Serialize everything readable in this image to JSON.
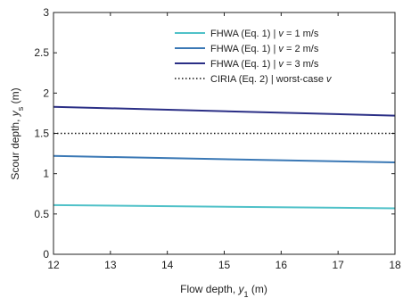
{
  "chart_data": {
    "type": "line",
    "xlabel": {
      "main": "Flow depth, ",
      "var": "y",
      "sub": "1",
      "unit": " (m)"
    },
    "ylabel": {
      "main": "Scour depth, ",
      "var": "y",
      "sub": "s",
      "unit": " (m)"
    },
    "xlim": [
      12,
      18
    ],
    "ylim": [
      0,
      3
    ],
    "xticks": [
      12,
      13,
      14,
      15,
      16,
      17,
      18
    ],
    "yticks": [
      0,
      0.5,
      1,
      1.5,
      2,
      2.5,
      3
    ],
    "ytick_labels": [
      "0",
      "0.5",
      "1",
      "1.5",
      "2",
      "2.5",
      "3"
    ],
    "legend_position": "top-right",
    "series": [
      {
        "name": "FHWA (Eq. 1) | v = 1 m/s",
        "label_main": "FHWA (Eq. 1) | ",
        "label_var": "v",
        "label_tail": " = 1 m/s",
        "color": "#4fc1c8",
        "style": "solid",
        "x": [
          12,
          18
        ],
        "y": [
          0.61,
          0.57
        ]
      },
      {
        "name": "FHWA (Eq. 1) | v = 2 m/s",
        "label_main": "FHWA (Eq. 1) | ",
        "label_var": "v",
        "label_tail": " = 2 m/s",
        "color": "#3a78b5",
        "style": "solid",
        "x": [
          12,
          18
        ],
        "y": [
          1.22,
          1.14
        ]
      },
      {
        "name": "FHWA (Eq. 1) | v = 3 m/s",
        "label_main": "FHWA (Eq. 1) | ",
        "label_var": "v",
        "label_tail": " = 3 m/s",
        "color": "#2b2f86",
        "style": "solid",
        "x": [
          12,
          18
        ],
        "y": [
          1.83,
          1.72
        ]
      },
      {
        "name": "CIRIA (Eq. 2) | worst-case v",
        "label_main": "CIRIA (Eq. 2) | worst-case ",
        "label_var": "v",
        "label_tail": "",
        "color": "#111111",
        "style": "dotted",
        "x": [
          12,
          18
        ],
        "y": [
          1.5,
          1.5
        ]
      }
    ]
  }
}
